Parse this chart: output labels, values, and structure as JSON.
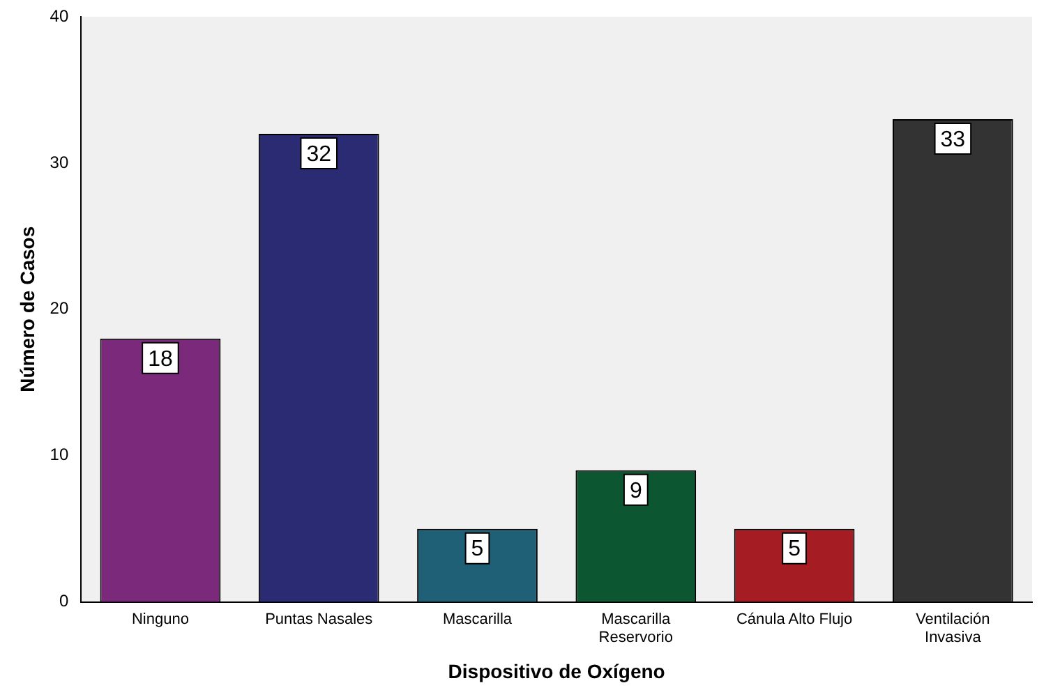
{
  "chart_data": {
    "type": "bar",
    "xlabel": "Dispositivo de Oxígeno",
    "ylabel": "Número de Casos",
    "categories": [
      "Ninguno",
      "Puntas Nasales",
      "Mascarilla",
      "Mascarilla\nReservorio",
      "Cánula Alto Flujo",
      "Ventilación\nInvasiva"
    ],
    "values": [
      18,
      32,
      5,
      9,
      5,
      33
    ],
    "colors": [
      "#7b2a7b",
      "#2b2b73",
      "#1f6076",
      "#0c5631",
      "#a51c23",
      "#333333"
    ],
    "ylim": [
      0,
      40
    ],
    "yticks": [
      0,
      10,
      20,
      30,
      40
    ],
    "grid": false,
    "legend": false,
    "data_labels": true
  }
}
